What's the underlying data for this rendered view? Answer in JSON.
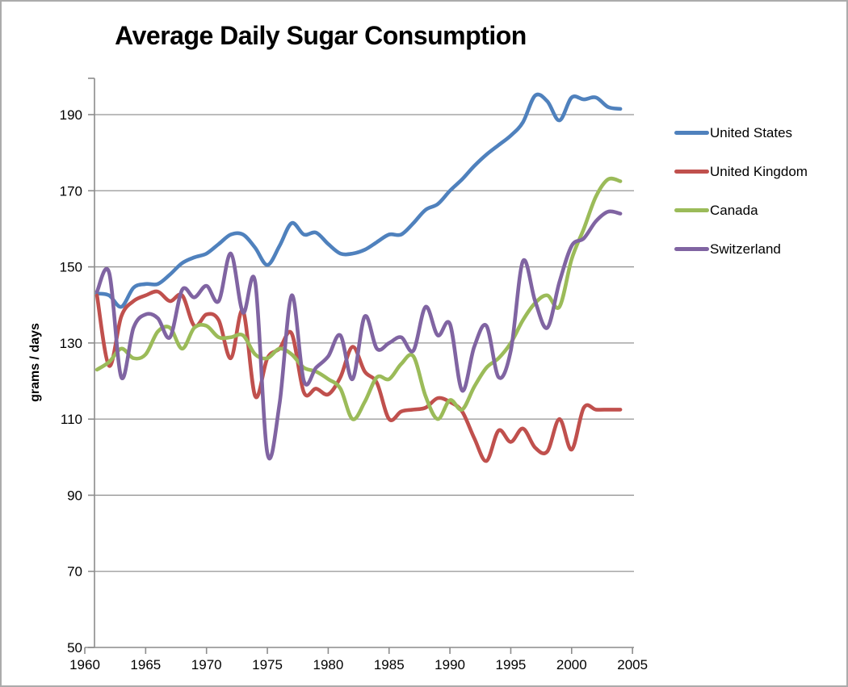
{
  "title": "Average Daily Sugar Consumption",
  "y_axis_label": "grams / days",
  "chart_data": {
    "type": "line",
    "smoothed": true,
    "title": "Average Daily Sugar Consumption",
    "xlabel": "",
    "ylabel": "grams / days",
    "grid": "horizontal-major",
    "legend_position": "right",
    "xlim": [
      1960,
      2005
    ],
    "ylim": [
      50,
      200
    ],
    "x_ticks": [
      1960,
      1965,
      1970,
      1975,
      1980,
      1985,
      1990,
      1995,
      2000,
      2005
    ],
    "y_ticks": [
      50,
      70,
      90,
      110,
      130,
      150,
      170,
      190
    ],
    "x": [
      1961,
      1962,
      1963,
      1964,
      1965,
      1966,
      1967,
      1968,
      1969,
      1970,
      1971,
      1972,
      1973,
      1974,
      1975,
      1976,
      1977,
      1978,
      1979,
      1980,
      1981,
      1982,
      1983,
      1984,
      1985,
      1986,
      1987,
      1988,
      1989,
      1990,
      1991,
      1992,
      1993,
      1994,
      1995,
      1996,
      1997,
      1998,
      1999,
      2000,
      2001,
      2002,
      2003,
      2004
    ],
    "series": [
      {
        "name": "United States",
        "color": "#4F81BD",
        "values": [
          143,
          142.5,
          139.5,
          144.5,
          145.5,
          145.5,
          148,
          151,
          152.5,
          153.5,
          156,
          158.5,
          158.5,
          155,
          150.5,
          155.5,
          161.5,
          158.5,
          159,
          156,
          153.5,
          153.5,
          154.5,
          156.5,
          158.5,
          158.5,
          161.5,
          165,
          166.5,
          170,
          173,
          176.5,
          179.5,
          182,
          184.5,
          188,
          195,
          193.5,
          188.5,
          194.5,
          194,
          194.5,
          192,
          191.5
        ]
      },
      {
        "name": "United Kingdom",
        "color": "#C0504D",
        "values": [
          142.5,
          124,
          137,
          141,
          142.5,
          143.5,
          141,
          142.5,
          134.5,
          137.5,
          136,
          126,
          138.5,
          116,
          126,
          128.5,
          132.5,
          117,
          118,
          116.5,
          121,
          129,
          122.5,
          119.5,
          110,
          112,
          112.5,
          113,
          115.5,
          114.5,
          112,
          105,
          99,
          107,
          104,
          107.5,
          102.5,
          101.5,
          110,
          102,
          113,
          112.5,
          112.5,
          112.5
        ]
      },
      {
        "name": "Canada",
        "color": "#9BBB59",
        "values": [
          123,
          125,
          128.5,
          126,
          127,
          133,
          134,
          128.5,
          134,
          134.5,
          131.5,
          131.5,
          132,
          127,
          126,
          128.5,
          127,
          123.5,
          122.5,
          120.5,
          118,
          110,
          114.5,
          121,
          120.5,
          124.5,
          126.5,
          116,
          110,
          115,
          112.5,
          118.5,
          123.5,
          126,
          130,
          136,
          140.5,
          142.5,
          139.5,
          152,
          160,
          168.5,
          173,
          172.5
        ]
      },
      {
        "name": "Switzerland",
        "color": "#8064A2",
        "values": [
          143.5,
          148.5,
          121,
          134,
          137.5,
          136.5,
          131.5,
          144,
          142,
          145,
          141,
          153.5,
          138,
          146,
          101,
          114,
          142.5,
          120,
          123.5,
          126.5,
          132,
          120.5,
          137,
          128.5,
          130,
          131.5,
          128,
          139.5,
          132,
          135,
          117.5,
          129,
          134.5,
          121,
          128,
          151.5,
          141,
          134,
          146,
          155.5,
          157.5,
          162,
          164.5,
          164
        ]
      }
    ]
  },
  "style": {
    "axis_color": "#8c8c8c",
    "grid_color": "#949494",
    "text_color": "#000000",
    "background": "#ffffff",
    "border_color": "#ababab"
  }
}
